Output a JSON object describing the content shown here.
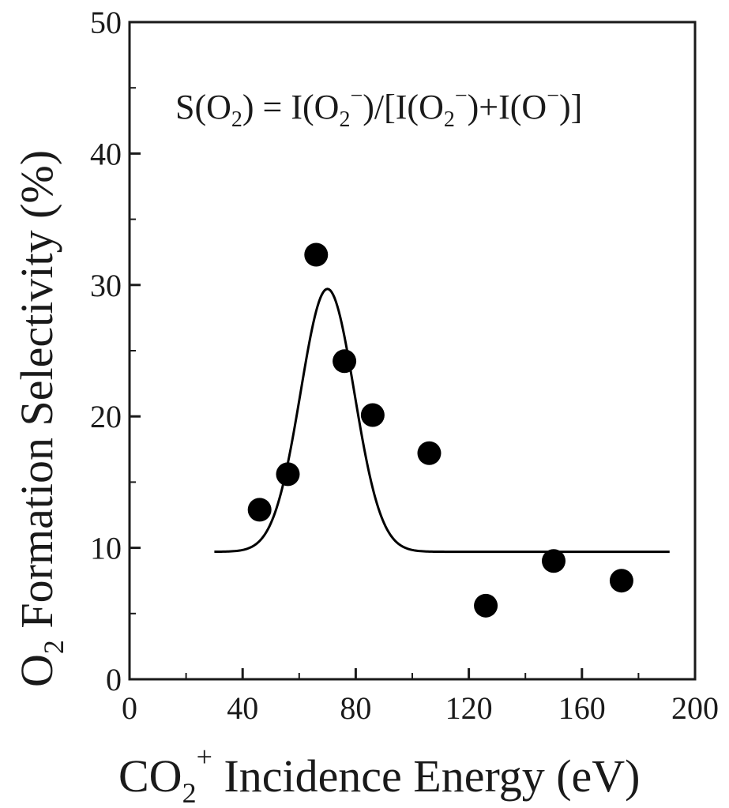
{
  "chart_data": {
    "type": "scatter",
    "annotation": {
      "s": "S(O",
      "s_sub": "2",
      "eq": ") = I(O",
      "eq_sub": "2",
      "eq_sup": "−",
      "mid": ")/[I(O",
      "mid_sub": "2",
      "mid_sup": "−",
      "tail": ")+I(O",
      "tail_sup": "−",
      "end": ")]"
    },
    "xlabel": {
      "main": "CO",
      "sub": "2",
      "sup": "+",
      "rest": " Incidence Energy (eV)"
    },
    "ylabel": {
      "main": "O",
      "sub": "2",
      "rest": " Formation Selectivity (%)"
    },
    "xlim": [
      0,
      200
    ],
    "ylim": [
      0,
      50
    ],
    "xticks": [
      "0",
      "40",
      "80",
      "120",
      "160",
      "200"
    ],
    "yticks": [
      "0",
      "10",
      "20",
      "30",
      "40",
      "50"
    ],
    "x_tick_values": [
      0,
      40,
      80,
      120,
      160,
      200
    ],
    "y_tick_values": [
      0,
      10,
      20,
      30,
      40,
      50
    ],
    "grid": false,
    "legend": "none",
    "series": [
      {
        "kind": "points",
        "color": "#000000",
        "x": [
          46,
          56,
          66,
          76,
          86,
          106,
          126,
          150,
          174
        ],
        "y": [
          12.9,
          15.6,
          32.3,
          24.2,
          20.1,
          17.2,
          5.6,
          9.0,
          7.5
        ]
      },
      {
        "kind": "fit-curve",
        "color": "#000000",
        "model": "gaussian",
        "baseline": 9.7,
        "amplitude": 20.0,
        "center": 70,
        "sigma": 9.5,
        "x_range": [
          30,
          191
        ]
      }
    ]
  }
}
